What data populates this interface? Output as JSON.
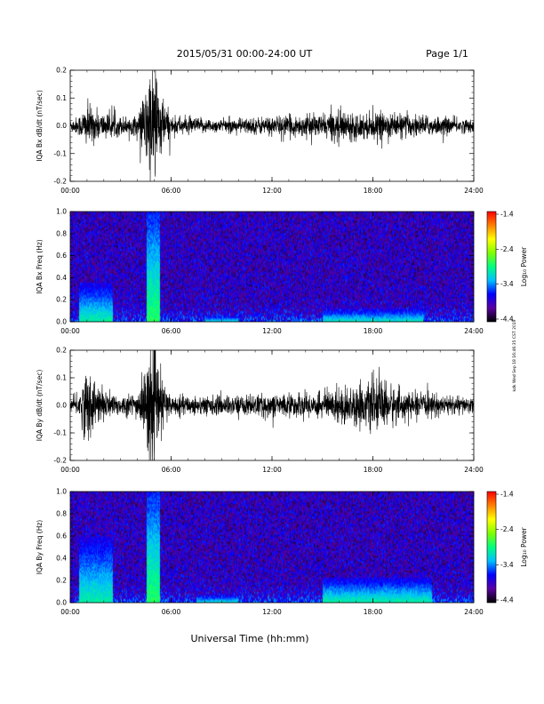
{
  "header": {
    "title": "2015/05/31  00:00-24:00 UT",
    "page": "Page 1/1"
  },
  "footer": {
    "xlabel": "Universal Time (hh:mm)"
  },
  "side_stamp": "kdk Wed Sep 18 16:46:35 CST 2019",
  "chart_data": [
    {
      "type": "line",
      "ylabel": "IQA Bx dB/dt (nT/sec)",
      "x_ticks": [
        "00:00",
        "06:00",
        "12:00",
        "18:00",
        "24:00"
      ],
      "y_ticks": [
        "0.2",
        "0.1",
        "0.0",
        "-0.1",
        "-0.2"
      ],
      "xlim_hours": [
        0,
        24
      ],
      "ylim": [
        -0.2,
        0.2
      ],
      "line_color": "#000000",
      "amplitude_envelope": [
        {
          "hour": 0.0,
          "amp": 0.02
        },
        {
          "hour": 0.5,
          "amp": 0.03
        },
        {
          "hour": 1.0,
          "amp": 0.07
        },
        {
          "hour": 1.5,
          "amp": 0.05
        },
        {
          "hour": 2.0,
          "amp": 0.04
        },
        {
          "hour": 3.0,
          "amp": 0.03
        },
        {
          "hour": 4.0,
          "amp": 0.03
        },
        {
          "hour": 4.5,
          "amp": 0.12
        },
        {
          "hour": 4.8,
          "amp": 0.2
        },
        {
          "hour": 5.1,
          "amp": 0.2
        },
        {
          "hour": 5.4,
          "amp": 0.1
        },
        {
          "hour": 6.0,
          "amp": 0.03
        },
        {
          "hour": 9.0,
          "amp": 0.02
        },
        {
          "hour": 12.0,
          "amp": 0.03
        },
        {
          "hour": 15.0,
          "amp": 0.035
        },
        {
          "hour": 16.0,
          "amp": 0.05
        },
        {
          "hour": 17.0,
          "amp": 0.04
        },
        {
          "hour": 19.0,
          "amp": 0.04
        },
        {
          "hour": 24.0,
          "amp": 0.02
        }
      ]
    },
    {
      "type": "heatmap",
      "ylabel": "IQA Bx Freq (Hz)",
      "x_ticks": [
        "00:00",
        "06:00",
        "12:00",
        "18:00",
        "24:00"
      ],
      "y_ticks": [
        "1.0",
        "0.8",
        "0.6",
        "0.4",
        "0.2",
        "0.0"
      ],
      "xlim_hours": [
        0,
        24
      ],
      "ylim": [
        0,
        1.0
      ],
      "colorbar": {
        "label": "Log₁₀ Power",
        "ticks": [
          "-1.4",
          "-2.4",
          "-3.4",
          "-4.4"
        ],
        "range": [
          -4.4,
          -1.4
        ],
        "colors": [
          "#000000",
          "#5a00a0",
          "#0000ff",
          "#00c0ff",
          "#00ff80",
          "#80ff00",
          "#ffff00",
          "#ff8000",
          "#ff0000"
        ]
      },
      "enhancements": [
        {
          "start_hour": 0.5,
          "end_hour": 2.5,
          "max_freq": 0.35,
          "level": -3.0
        },
        {
          "start_hour": 4.5,
          "end_hour": 5.3,
          "max_freq": 1.0,
          "level": -2.8
        },
        {
          "start_hour": 8.0,
          "end_hour": 10.0,
          "max_freq": 0.05,
          "level": -3.2
        },
        {
          "start_hour": 15.0,
          "end_hour": 21.0,
          "max_freq": 0.12,
          "level": -3.1
        }
      ]
    },
    {
      "type": "line",
      "ylabel": "IQA By dB/dt (nT/sec)",
      "x_ticks": [
        "00:00",
        "06:00",
        "12:00",
        "18:00",
        "24:00"
      ],
      "y_ticks": [
        "0.2",
        "0.1",
        "0.0",
        "-0.1",
        "-0.2"
      ],
      "xlim_hours": [
        0,
        24
      ],
      "ylim": [
        -0.2,
        0.2
      ],
      "line_color": "#000000",
      "amplitude_envelope": [
        {
          "hour": 0.0,
          "amp": 0.02
        },
        {
          "hour": 0.5,
          "amp": 0.04
        },
        {
          "hour": 1.0,
          "amp": 0.12
        },
        {
          "hour": 1.5,
          "amp": 0.07
        },
        {
          "hour": 2.0,
          "amp": 0.05
        },
        {
          "hour": 3.0,
          "amp": 0.03
        },
        {
          "hour": 4.0,
          "amp": 0.04
        },
        {
          "hour": 4.5,
          "amp": 0.12
        },
        {
          "hour": 4.8,
          "amp": 0.19
        },
        {
          "hour": 5.1,
          "amp": 0.17
        },
        {
          "hour": 5.4,
          "amp": 0.09
        },
        {
          "hour": 6.0,
          "amp": 0.03
        },
        {
          "hour": 9.0,
          "amp": 0.03
        },
        {
          "hour": 12.0,
          "amp": 0.035
        },
        {
          "hour": 15.0,
          "amp": 0.04
        },
        {
          "hour": 16.0,
          "amp": 0.06
        },
        {
          "hour": 17.0,
          "amp": 0.06
        },
        {
          "hour": 18.5,
          "amp": 0.08
        },
        {
          "hour": 20.0,
          "amp": 0.04
        },
        {
          "hour": 24.0,
          "amp": 0.025
        }
      ]
    },
    {
      "type": "heatmap",
      "ylabel": "IQA By Freq (Hz)",
      "x_ticks": [
        "00:00",
        "06:00",
        "12:00",
        "18:00",
        "24:00"
      ],
      "y_ticks": [
        "1.0",
        "0.8",
        "0.6",
        "0.4",
        "0.2",
        "0.0"
      ],
      "xlim_hours": [
        0,
        24
      ],
      "ylim": [
        0,
        1.0
      ],
      "colorbar": {
        "label": "Log₁₀ Power",
        "ticks": [
          "-1.4",
          "-2.4",
          "-3.4",
          "-4.4"
        ],
        "range": [
          -4.4,
          -1.4
        ],
        "colors": [
          "#000000",
          "#5a00a0",
          "#0000ff",
          "#00c0ff",
          "#00ff80",
          "#80ff00",
          "#ffff00",
          "#ff8000",
          "#ff0000"
        ]
      },
      "enhancements": [
        {
          "start_hour": 0.5,
          "end_hour": 2.5,
          "max_freq": 0.6,
          "level": -3.0
        },
        {
          "start_hour": 4.5,
          "end_hour": 5.3,
          "max_freq": 1.0,
          "level": -2.8
        },
        {
          "start_hour": 7.5,
          "end_hour": 10.0,
          "max_freq": 0.08,
          "level": -3.2
        },
        {
          "start_hour": 15.0,
          "end_hour": 21.5,
          "max_freq": 0.22,
          "level": -3.0
        }
      ]
    }
  ]
}
